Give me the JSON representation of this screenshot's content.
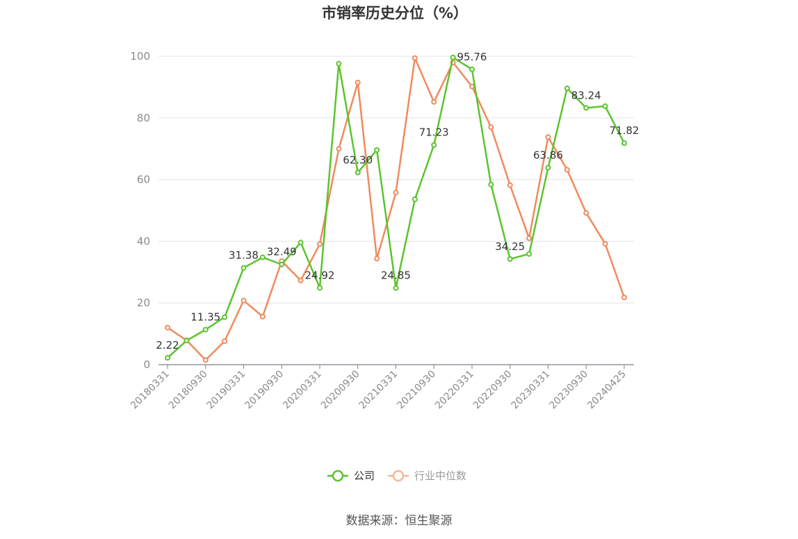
{
  "chart_data": {
    "type": "line",
    "title": "市销率历史分位（%）",
    "source": "数据来源：恒生聚源",
    "ylim": [
      0,
      100
    ],
    "yticks": [
      0,
      20,
      40,
      60,
      80,
      100
    ],
    "grid": true,
    "legend_position": "bottom",
    "x": [
      "20180331",
      "20180630",
      "20180930",
      "20181231",
      "20190331",
      "20190630",
      "20190930",
      "20191231",
      "20200331",
      "20200630",
      "20200930",
      "20201231",
      "20210331",
      "20210630",
      "20210930",
      "20211231",
      "20220331",
      "20220630",
      "20220930",
      "20221231",
      "20230331",
      "20230630",
      "20230930",
      "20231231",
      "20240425"
    ],
    "xtick_labels": [
      "20180331",
      "20180930",
      "20190331",
      "20190930",
      "20200331",
      "20200930",
      "20210331",
      "20210930",
      "20220331",
      "20220930",
      "20230331",
      "20230930",
      "20240425"
    ],
    "series": [
      {
        "name": "公司",
        "color": "#5ac42d",
        "values": [
          2.22,
          7.8,
          11.35,
          15.4,
          31.38,
          34.8,
          32.49,
          39.6,
          24.92,
          97.6,
          62.3,
          69.6,
          24.85,
          53.6,
          71.23,
          99.6,
          95.76,
          58.4,
          34.25,
          35.9,
          63.86,
          89.6,
          83.24,
          83.8,
          71.82
        ],
        "labels": {
          "0": "2.22",
          "2": "11.35",
          "4": "31.38",
          "6": "32.49",
          "8": "24.92",
          "10": "62.30",
          "12": "24.85",
          "14": "71.23",
          "16": "95.76",
          "18": "34.25",
          "20": "63.86",
          "22": "83.24",
          "24": "71.82"
        }
      },
      {
        "name": "行业中位数",
        "color": "#f08a5d",
        "values": [
          12.0,
          7.9,
          1.5,
          7.6,
          20.8,
          15.6,
          33.6,
          27.3,
          39.1,
          70.0,
          91.5,
          34.4,
          55.8,
          99.4,
          85.2,
          98.0,
          90.2,
          77.0,
          58.2,
          41.0,
          73.8,
          63.2,
          49.2,
          39.2,
          21.8
        ]
      }
    ]
  }
}
